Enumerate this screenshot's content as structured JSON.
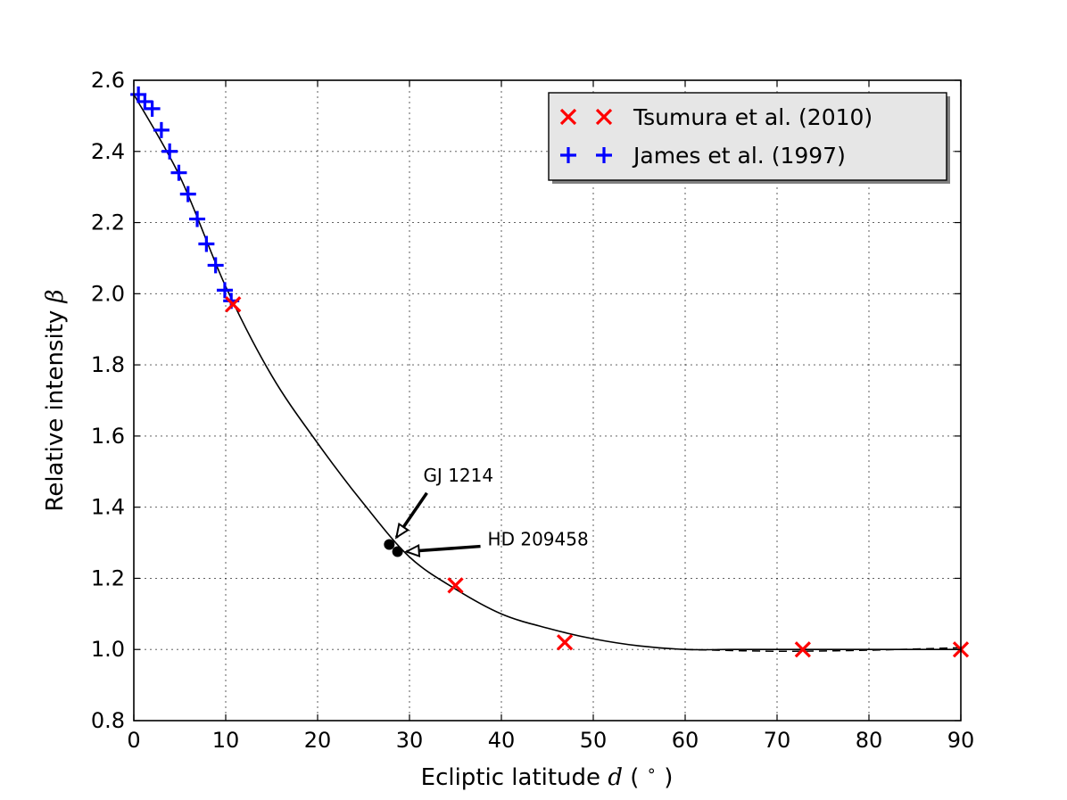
{
  "chart_data": {
    "type": "scatter",
    "xlabel": "Ecliptic latitude",
    "xlabel_symbol": "d",
    "xlabel_unit_open": "(",
    "xlabel_unit_sym": "∘",
    "xlabel_unit_close": ")",
    "ylabel": "Relative intensity",
    "ylabel_symbol": "β",
    "xlim": [
      0,
      90
    ],
    "ylim": [
      0.8,
      2.6
    ],
    "xticks": [
      0,
      10,
      20,
      30,
      40,
      50,
      60,
      70,
      80,
      90
    ],
    "yticks": [
      "0.8",
      "1.0",
      "1.2",
      "1.4",
      "1.6",
      "1.8",
      "2.0",
      "2.2",
      "2.4",
      "2.6"
    ],
    "grid": true,
    "legend_position": "top-right",
    "series": [
      {
        "name": "Tsumura et al. (2010)",
        "marker": "x",
        "color": "#ff0000",
        "x": [
          10.8,
          35.0,
          46.9,
          72.8,
          90.0
        ],
        "y": [
          1.97,
          1.18,
          1.02,
          1.0,
          1.0
        ]
      },
      {
        "name": "James et al. (1997)",
        "marker": "+",
        "color": "#0000ff",
        "x": [
          0.5,
          1.2,
          2.0,
          3.0,
          3.9,
          4.9,
          5.9,
          6.9,
          7.9,
          8.9,
          9.9,
          10.6
        ],
        "y": [
          2.56,
          2.54,
          2.52,
          2.46,
          2.4,
          2.34,
          2.28,
          2.21,
          2.14,
          2.08,
          2.01,
          1.98
        ]
      }
    ],
    "fit_curve": {
      "color": "#000000",
      "x": [
        0,
        5,
        10,
        15,
        20,
        25,
        30,
        35,
        40,
        45,
        50,
        55,
        60,
        65,
        70,
        75,
        80,
        85,
        90
      ],
      "y": [
        2.56,
        2.33,
        2.02,
        1.77,
        1.58,
        1.41,
        1.26,
        1.17,
        1.1,
        1.06,
        1.03,
        1.01,
        1.0,
        1.0,
        1.0,
        1.0,
        1.0,
        1.0,
        1.0
      ]
    },
    "dashed_curve": {
      "color": "#000000",
      "x": [
        60,
        70,
        80,
        90
      ],
      "y": [
        1.0,
        0.995,
        0.998,
        1.005
      ]
    },
    "annotations": [
      {
        "label": "GJ 1214",
        "x": 27.8,
        "y": 1.295,
        "text_x": 31.5,
        "text_y": 1.49
      },
      {
        "label": "HD 209458",
        "x": 28.7,
        "y": 1.275,
        "text_x": 38.5,
        "text_y": 1.31
      }
    ]
  }
}
